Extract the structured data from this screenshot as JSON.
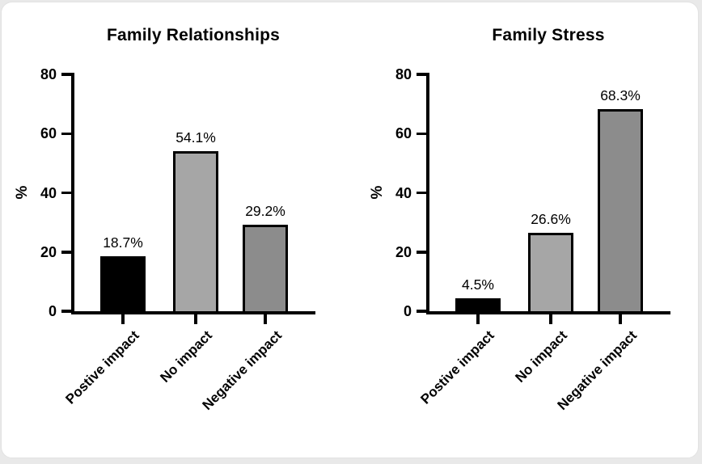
{
  "figure": {
    "page_background": "#e9e9e9",
    "card_background": "#ffffff",
    "axis_color": "#000000",
    "text_color": "#000000",
    "bar_border_color": "#000000"
  },
  "chart_data": [
    {
      "type": "bar",
      "title": "Family Relationships",
      "ylabel": "%",
      "xlabel": "",
      "ylim": [
        0,
        80
      ],
      "yticks": [
        0,
        20,
        40,
        60,
        80
      ],
      "grid": false,
      "legend": "none",
      "categories": [
        "Postive impact",
        "No impact",
        "Negative impact"
      ],
      "values": [
        18.7,
        54.1,
        29.2
      ],
      "value_labels": [
        "18.7%",
        "54.1%",
        "29.2%"
      ],
      "bar_colors": [
        "#000000",
        "#a6a6a6",
        "#8c8c8c"
      ]
    },
    {
      "type": "bar",
      "title": "Family Stress",
      "ylabel": "%",
      "xlabel": "",
      "ylim": [
        0,
        80
      ],
      "yticks": [
        0,
        20,
        40,
        60,
        80
      ],
      "grid": false,
      "legend": "none",
      "categories": [
        "Postive impact",
        "No impact",
        "Negative impact"
      ],
      "values": [
        4.5,
        26.6,
        68.3
      ],
      "value_labels": [
        "4.5%",
        "26.6%",
        "68.3%"
      ],
      "bar_colors": [
        "#000000",
        "#a6a6a6",
        "#8c8c8c"
      ]
    }
  ]
}
